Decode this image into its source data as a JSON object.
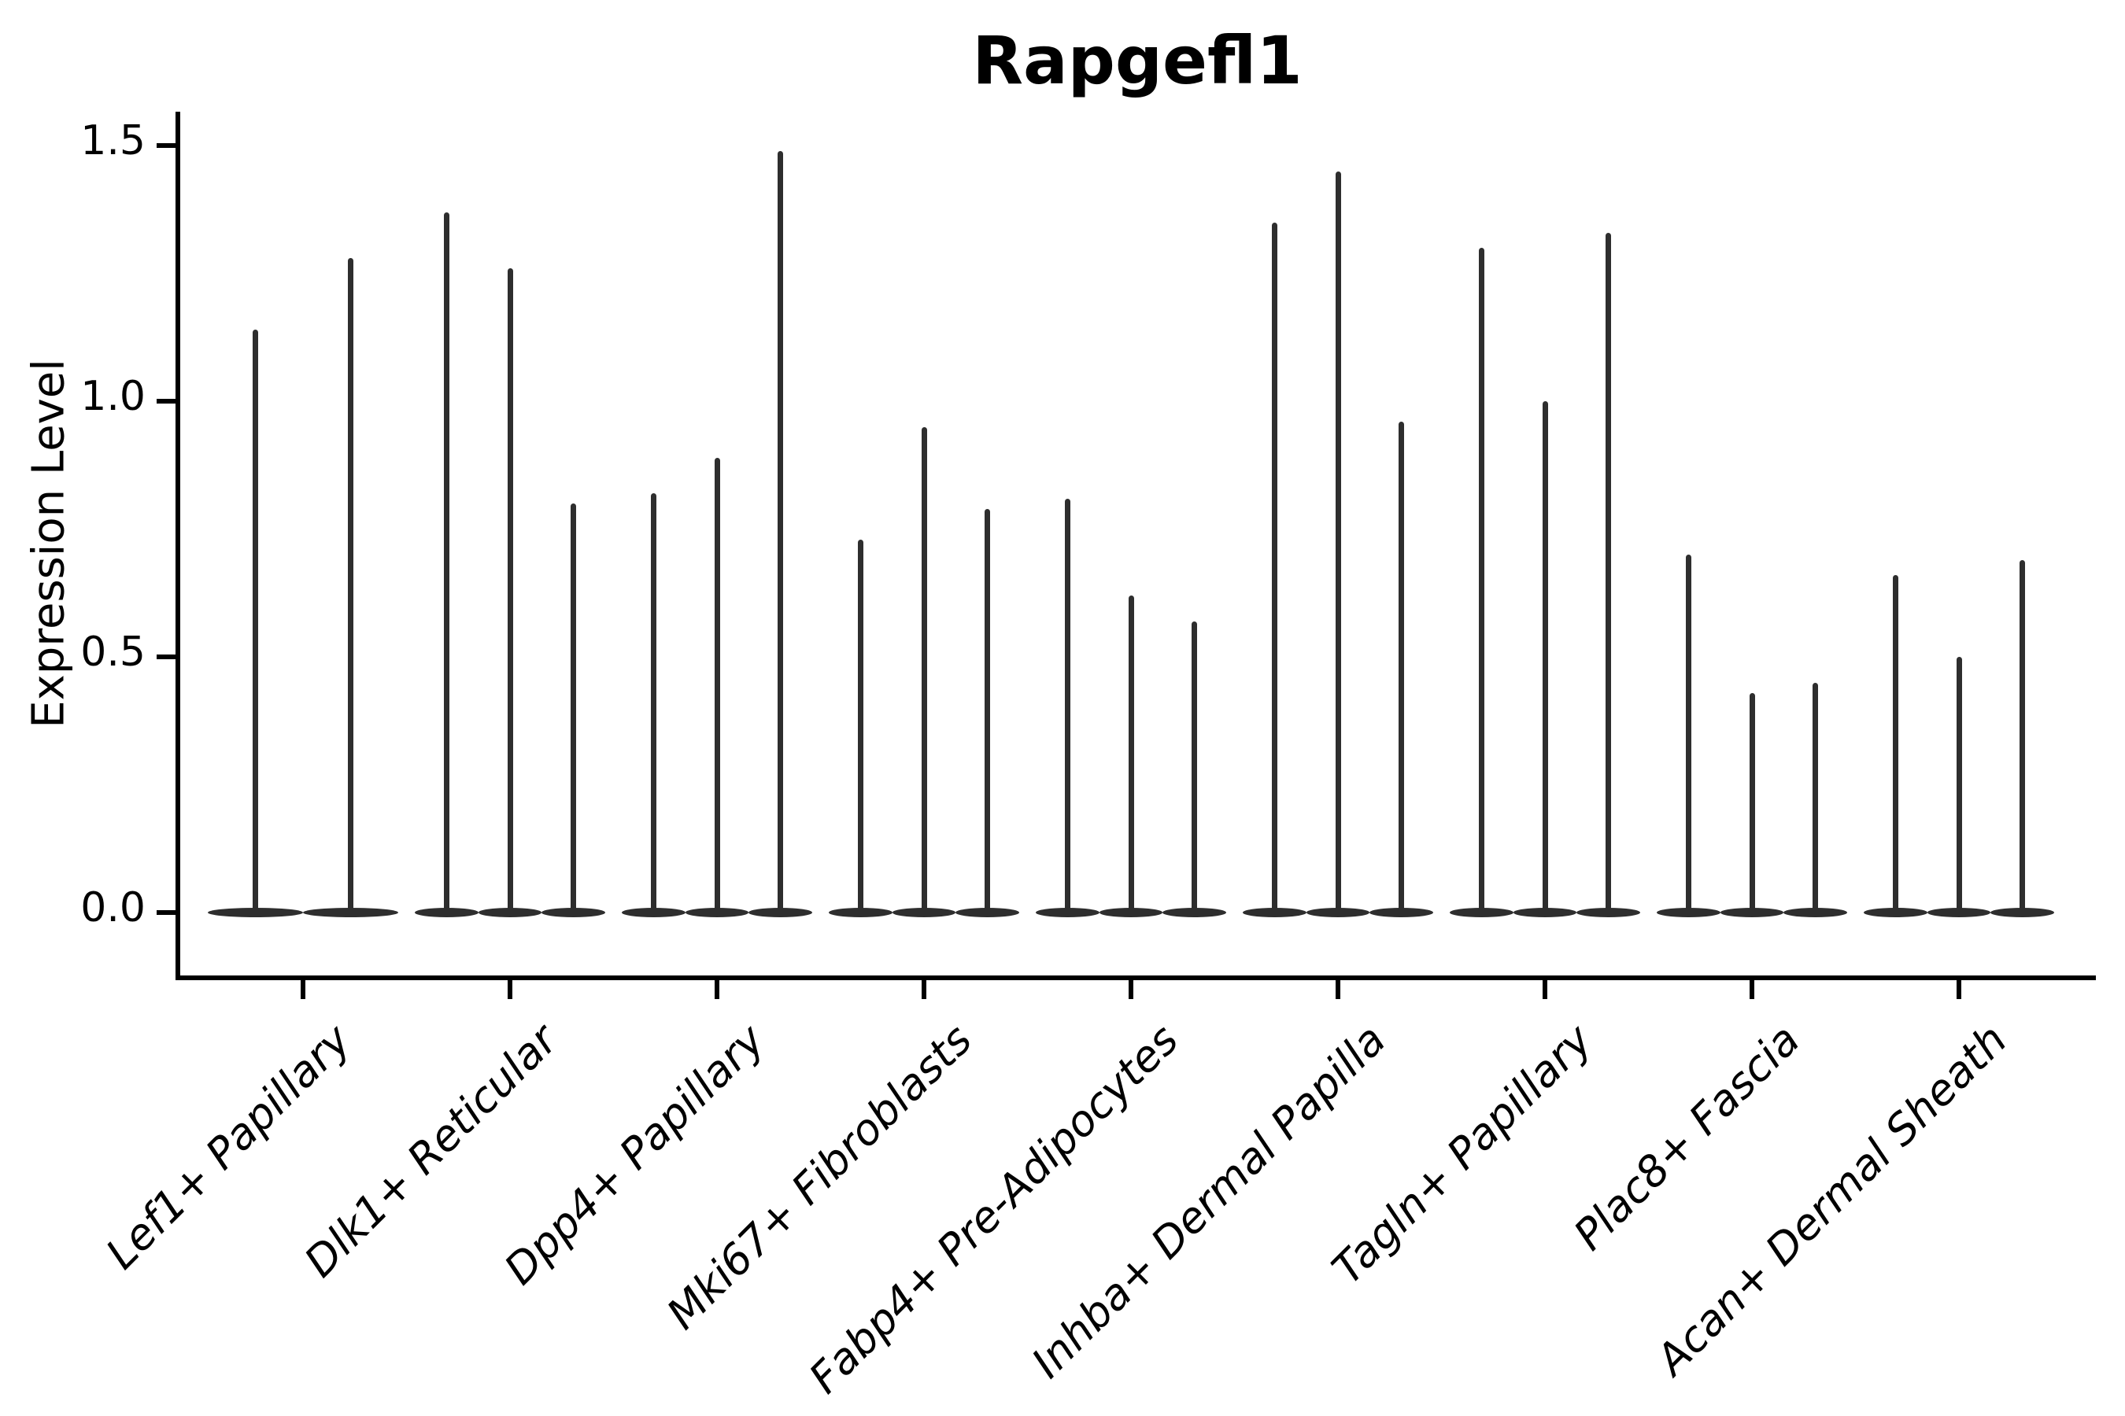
{
  "title": "Rapgefl1",
  "axes": {
    "y_label": "Expression Level",
    "y_tick_labels": [
      "0.0",
      "0.5",
      "1.0",
      "1.5"
    ]
  },
  "colors": {
    "violin": "#2e2e2e",
    "axis": "#000000",
    "background": "#ffffff",
    "text": "#000000"
  },
  "chart_data": {
    "type": "violin",
    "title": "Rapgefl1",
    "xlabel": "",
    "ylabel": "Expression Level",
    "ylim": [
      0,
      1.57
    ],
    "yticks": [
      0.0,
      0.5,
      1.0,
      1.5
    ],
    "grid": false,
    "legend": "none",
    "description": "Needle-like violins (expression mostly zero with thin density up to a max) grouped per cell type; 2 violins in the first category, 3 in all others.",
    "categories": [
      "Lef1+ Papillary",
      "Dlk1+ Reticular",
      "Dpp4+ Papillary",
      "Mki67+ Fibroblasts",
      "Fabp4+ Pre-Adipocytes",
      "Inhba+ Dermal Papilla",
      "Tagln+ Papillary",
      "Plac8+ Fascia",
      "Acan+ Dermal Sheath"
    ],
    "series": [
      {
        "category": "Lef1+ Papillary",
        "violin_max_values": [
          1.14,
          1.28
        ]
      },
      {
        "category": "Dlk1+ Reticular",
        "violin_max_values": [
          1.37,
          1.26,
          0.8
        ]
      },
      {
        "category": "Dpp4+ Papillary",
        "violin_max_values": [
          0.82,
          0.89,
          1.49
        ]
      },
      {
        "category": "Mki67+ Fibroblasts",
        "violin_max_values": [
          0.73,
          0.95,
          0.79
        ]
      },
      {
        "category": "Fabp4+ Pre-Adipocytes",
        "violin_max_values": [
          0.81,
          0.62,
          0.57
        ]
      },
      {
        "category": "Inhba+ Dermal Papilla",
        "violin_max_values": [
          1.35,
          1.45,
          0.96
        ]
      },
      {
        "category": "Tagln+ Papillary",
        "violin_max_values": [
          1.3,
          1.0,
          1.33
        ]
      },
      {
        "category": "Plac8+ Fascia",
        "violin_max_values": [
          0.7,
          0.43,
          0.45
        ]
      },
      {
        "category": "Acan+ Dermal Sheath",
        "violin_max_values": [
          0.66,
          0.5,
          0.69
        ]
      }
    ]
  }
}
